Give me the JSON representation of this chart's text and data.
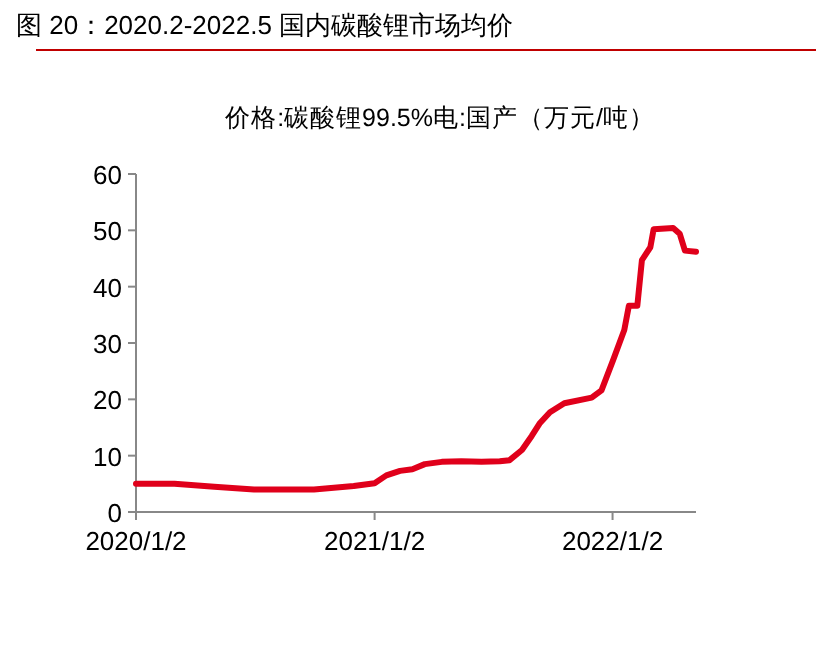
{
  "chart_data": {
    "type": "line",
    "title": "图 20：2020.2-2022.5 国内碳酸锂市场均价",
    "subtitle": "价格:碳酸锂99.5%电:国产（万元/吨）",
    "x": [
      "2020-01-02",
      "2020-03-01",
      "2020-05-01",
      "2020-07-01",
      "2020-10-01",
      "2020-12-01",
      "2021-01-02",
      "2021-01-20",
      "2021-02-10",
      "2021-03-01",
      "2021-03-20",
      "2021-04-15",
      "2021-05-15",
      "2021-06-15",
      "2021-07-13",
      "2021-07-28",
      "2021-08-16",
      "2021-08-31",
      "2021-09-12",
      "2021-09-28",
      "2021-10-20",
      "2021-12-01",
      "2021-12-16",
      "2022-01-03",
      "2022-01-20",
      "2022-01-27",
      "2022-02-09",
      "2022-02-16",
      "2022-03-01",
      "2022-03-06",
      "2022-04-05",
      "2022-04-15",
      "2022-04-23",
      "2022-05-10"
    ],
    "series": [
      {
        "color": "#e0001b",
        "values": [
          5.0,
          5.0,
          4.5,
          4.0,
          4.0,
          4.6,
          5.1,
          6.5,
          7.3,
          7.6,
          8.5,
          8.9,
          9.0,
          8.9,
          9.0,
          9.2,
          11.0,
          13.5,
          15.7,
          17.7,
          19.3,
          20.3,
          21.6,
          27,
          32.3,
          36.6,
          36.6,
          44.7,
          47,
          50.2,
          50.4,
          49.4,
          46.4,
          46.2
        ]
      }
    ],
    "xlim": [
      "2020-01-02",
      "2022-05-10"
    ],
    "xticks": [
      {
        "value": "2020-01-02",
        "label": "2020/1/2"
      },
      {
        "value": "2021-01-02",
        "label": "2021/1/2"
      },
      {
        "value": "2022-01-02",
        "label": "2022/1/2"
      }
    ],
    "ylim": [
      0,
      60
    ],
    "yticks": [
      0,
      10,
      20,
      30,
      40,
      50,
      60
    ],
    "grid": false,
    "marker": "none",
    "line_style": "solid"
  }
}
